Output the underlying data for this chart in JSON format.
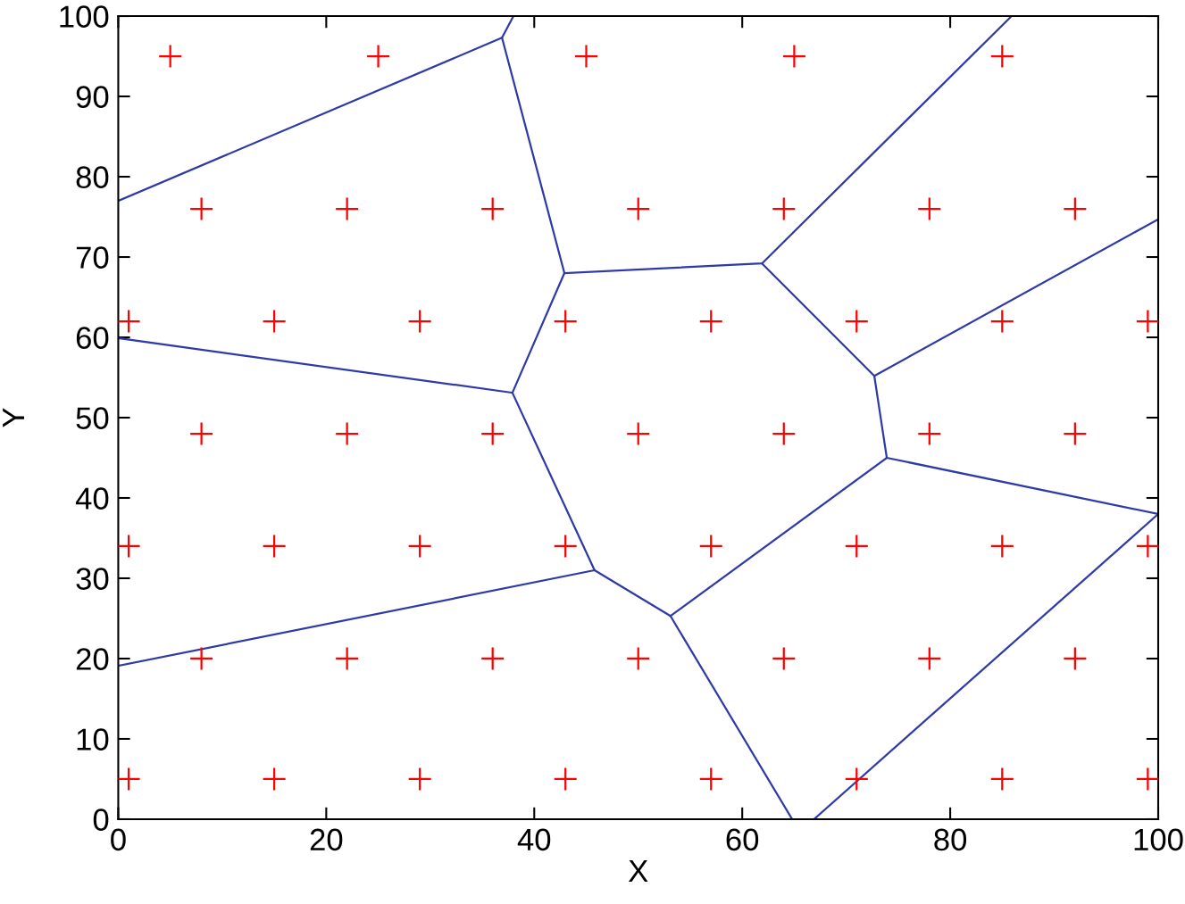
{
  "chart_data": {
    "type": "scatter",
    "xlabel": "X",
    "ylabel": "Y",
    "xlim": [
      0,
      100
    ],
    "ylim": [
      0,
      100
    ],
    "xticks": [
      0,
      20,
      40,
      60,
      80,
      100
    ],
    "yticks": [
      0,
      10,
      20,
      30,
      40,
      50,
      60,
      70,
      80,
      90,
      100
    ],
    "grid": false,
    "line_style": "solid",
    "series": [
      {
        "color": "#ff0000",
        "marker": "cross",
        "x": [
          5,
          25,
          45,
          65,
          85,
          8,
          22,
          36,
          50,
          64,
          78,
          92,
          1,
          15,
          29,
          43,
          57,
          71,
          85,
          99,
          8,
          22,
          36,
          50,
          64,
          78,
          92,
          1,
          15,
          29,
          43,
          57,
          71,
          85,
          99,
          8,
          22,
          36,
          50,
          64,
          78,
          92,
          1,
          15,
          29,
          43,
          57,
          71,
          85,
          99
        ],
        "values": [
          95,
          95,
          95,
          95,
          95,
          76,
          76,
          76,
          76,
          76,
          76,
          76,
          62,
          62,
          62,
          62,
          62,
          62,
          62,
          62,
          48,
          48,
          48,
          48,
          48,
          48,
          48,
          34,
          34,
          34,
          34,
          34,
          34,
          34,
          34,
          20,
          20,
          20,
          20,
          20,
          20,
          20,
          5,
          5,
          5,
          5,
          5,
          5,
          5,
          5
        ]
      },
      {
        "type": "line",
        "color": "#2e3aa6",
        "x": [
          0,
          36.9,
          38.0
        ],
        "values": [
          77.0,
          97.3,
          100
        ]
      },
      {
        "type": "line",
        "color": "#2e3aa6",
        "x": [
          36.9,
          42.9,
          37.9,
          45.8,
          53.1,
          64.8
        ],
        "values": [
          97.3,
          68.0,
          53.1,
          31.0,
          25.3,
          0
        ]
      },
      {
        "type": "line",
        "color": "#2e3aa6",
        "x": [
          42.9,
          61.9,
          85.9
        ],
        "values": [
          68.0,
          69.2,
          100
        ]
      },
      {
        "type": "line",
        "color": "#2e3aa6",
        "x": [
          61.9,
          72.7,
          100
        ],
        "values": [
          69.2,
          55.2,
          74.7
        ]
      },
      {
        "type": "line",
        "color": "#2e3aa6",
        "x": [
          72.7,
          73.9,
          100
        ],
        "values": [
          55.2,
          45.0,
          38.0
        ]
      },
      {
        "type": "line",
        "color": "#2e3aa6",
        "x": [
          73.9,
          53.1
        ],
        "values": [
          45.0,
          25.3
        ]
      },
      {
        "type": "line",
        "color": "#2e3aa6",
        "x": [
          0,
          37.9
        ],
        "values": [
          59.9,
          53.1
        ]
      },
      {
        "type": "line",
        "color": "#2e3aa6",
        "x": [
          0,
          45.8
        ],
        "values": [
          19.1,
          31.0
        ]
      },
      {
        "type": "line",
        "color": "#2e3aa6",
        "x": [
          66.9,
          100
        ],
        "values": [
          0,
          38.0
        ]
      }
    ]
  }
}
